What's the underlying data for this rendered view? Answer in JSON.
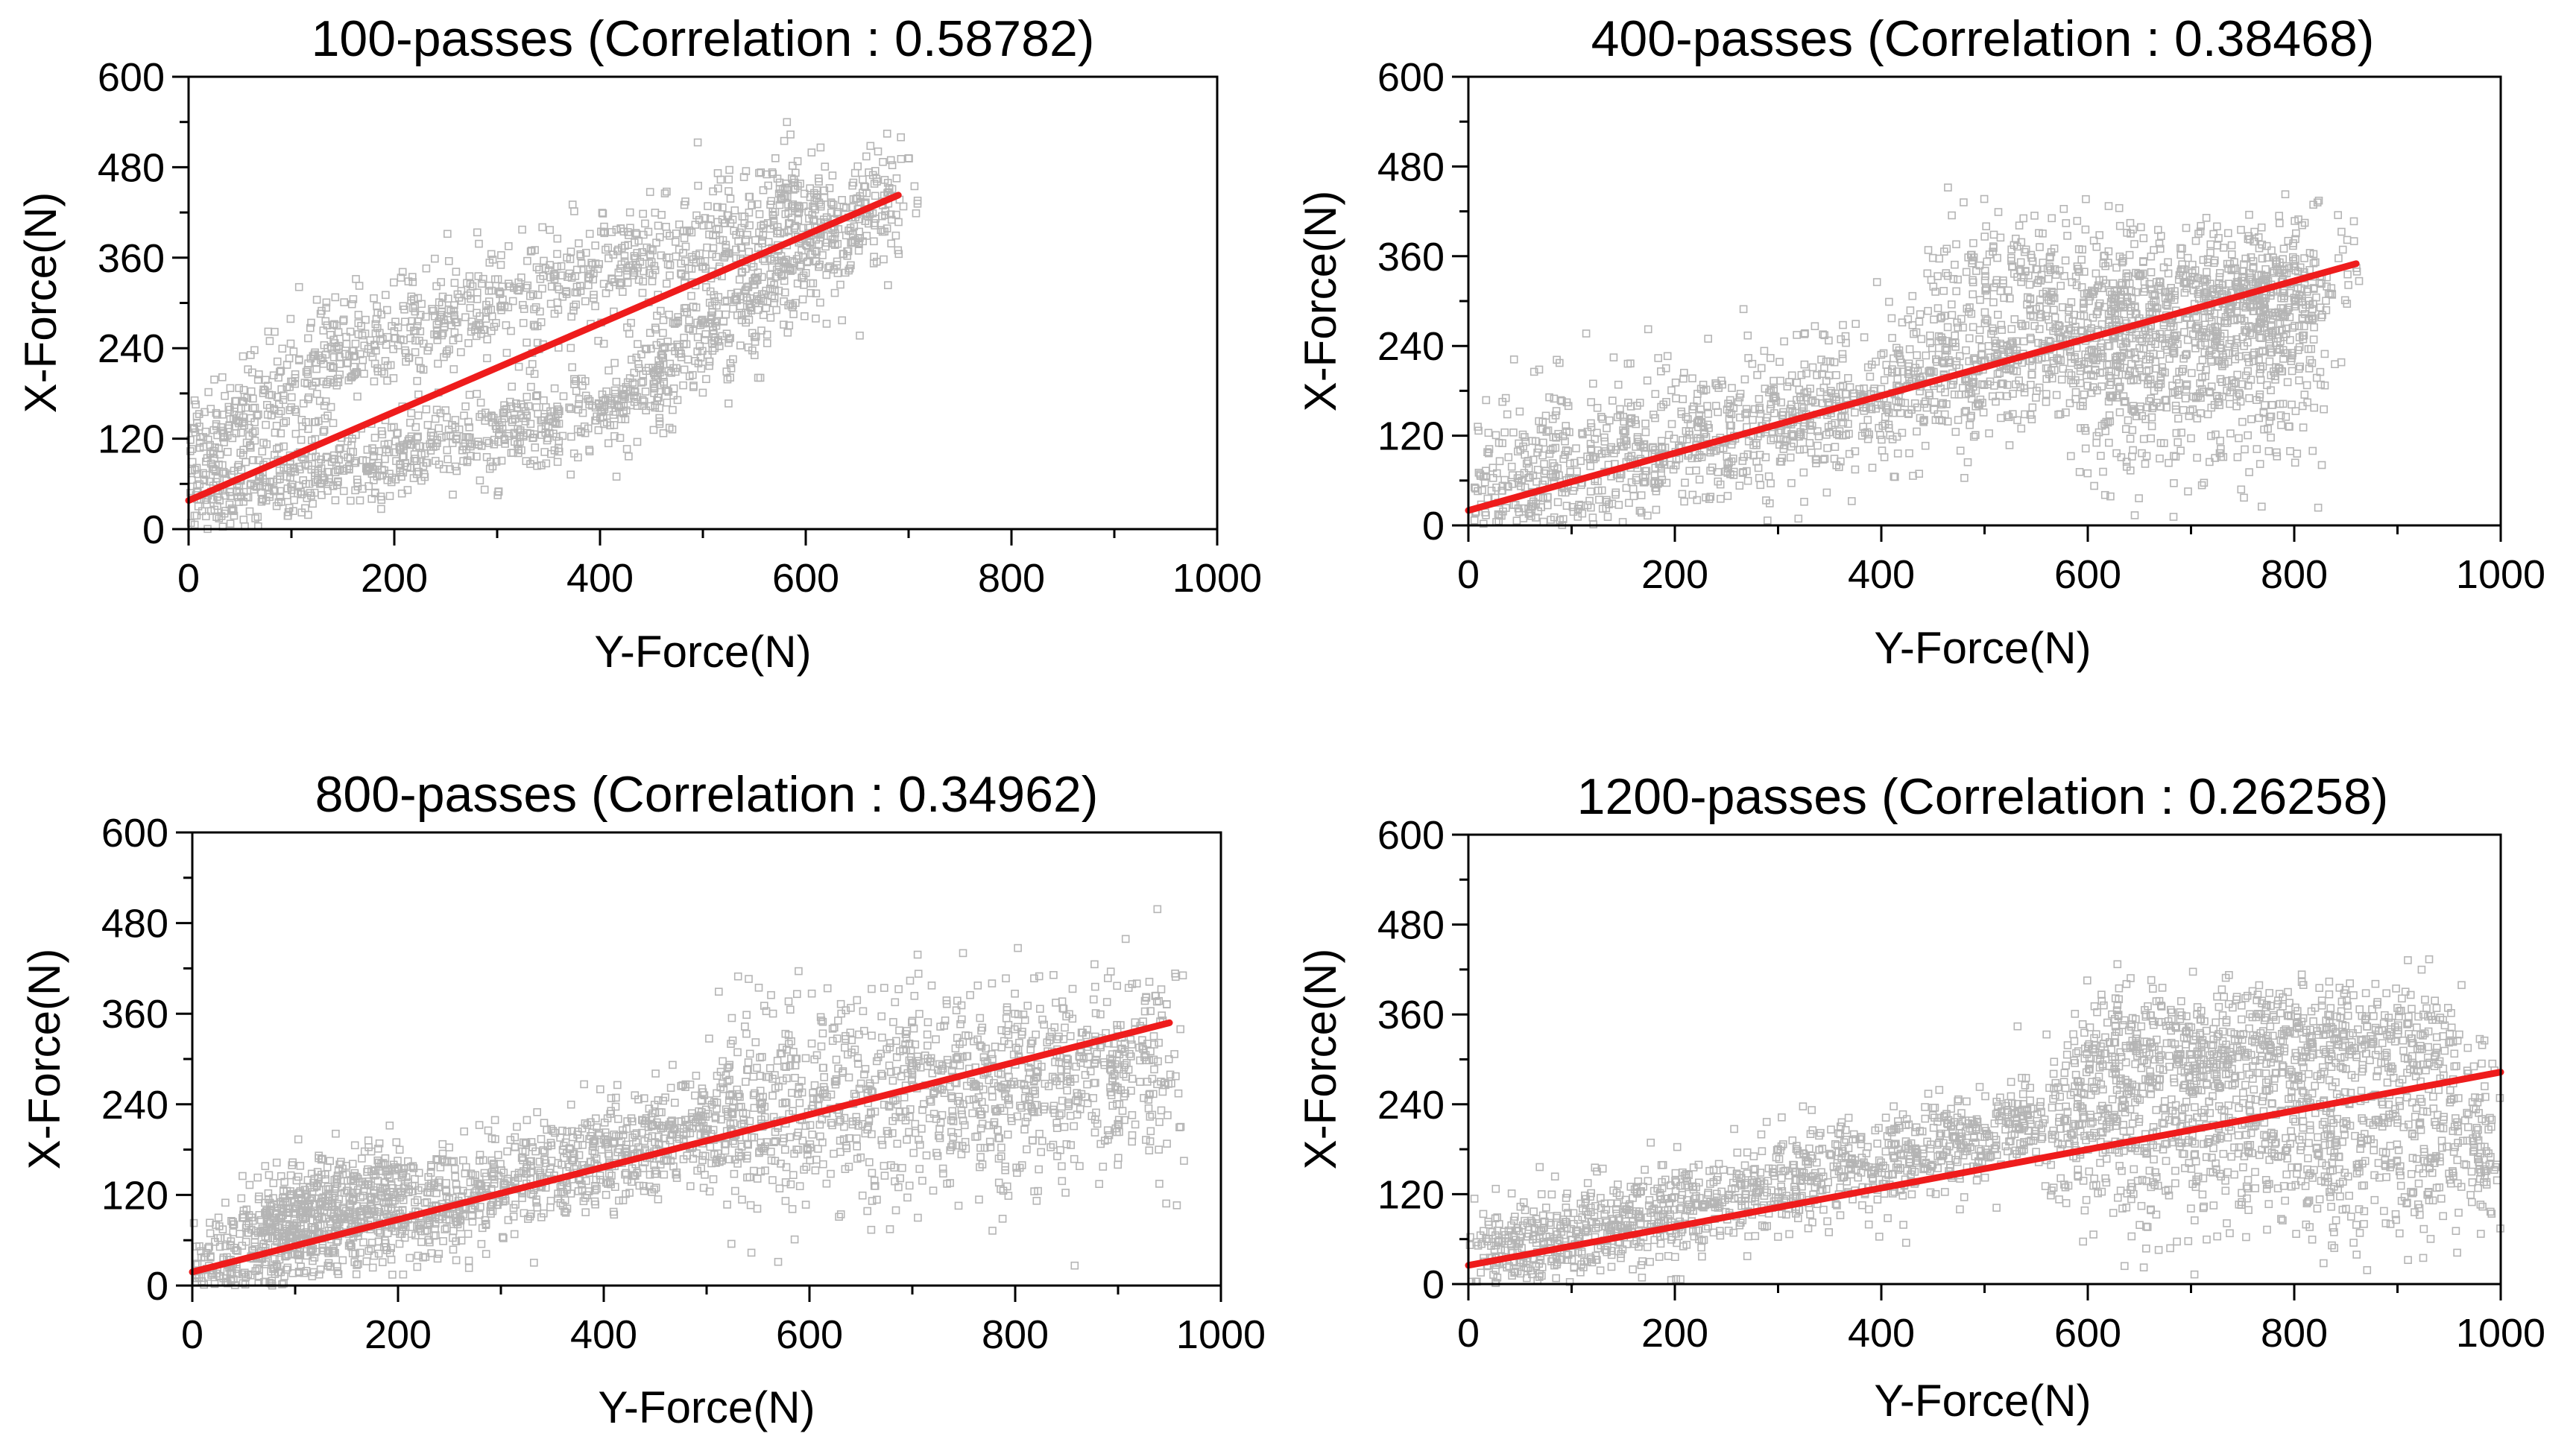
{
  "colors": {
    "scatter_points": "#b5b5b5",
    "fit_line": "#ee1c1c",
    "axes": "#000000"
  },
  "chart_data": [
    {
      "type": "scatter",
      "title": "100-passes (Correlation : 0.58782)",
      "correlation": 0.58782,
      "xlabel": "Y-Force(N)",
      "ylabel": "X-Force(N)",
      "xlim": [
        0,
        1000
      ],
      "ylim": [
        0,
        600
      ],
      "x_ticks": [
        "0",
        "200",
        "400",
        "600",
        "800",
        "1000"
      ],
      "y_ticks": [
        "0",
        "120",
        "240",
        "360",
        "480",
        "600"
      ],
      "fit_line": {
        "x": [
          0,
          690
        ],
        "y": [
          38,
          443
        ]
      },
      "point_count": 2200,
      "point_clouds": [
        {
          "x": [
            0,
            150
          ],
          "y_center": [
            95,
            230
          ],
          "spread": 40,
          "share": 0.13
        },
        {
          "x": [
            150,
            620
          ],
          "y_center": [
            235,
            440
          ],
          "spread": 38,
          "share": 0.32
        },
        {
          "x": [
            0,
            420
          ],
          "y_center": [
            30,
            170
          ],
          "spread": 28,
          "share": 0.3
        },
        {
          "x": [
            420,
            690
          ],
          "y_center": [
            170,
            450
          ],
          "spread": 38,
          "share": 0.25
        }
      ]
    },
    {
      "type": "scatter",
      "title": "400-passes (Correlation : 0.38468)",
      "correlation": 0.38468,
      "xlabel": "Y-Force(N)",
      "ylabel": "X-Force(N)",
      "xlim": [
        0,
        1000
      ],
      "ylim": [
        0,
        600
      ],
      "x_ticks": [
        "0",
        "200",
        "400",
        "600",
        "800",
        "1000"
      ],
      "y_ticks": [
        "0",
        "120",
        "240",
        "360",
        "480",
        "600"
      ],
      "fit_line": {
        "x": [
          0,
          860
        ],
        "y": [
          20,
          350
        ]
      },
      "point_count": 2600,
      "point_clouds": [
        {
          "x": [
            0,
            850
          ],
          "y_center": [
            60,
            330
          ],
          "spread": 55,
          "share": 0.4
        },
        {
          "x": [
            0,
            820
          ],
          "y_center": [
            20,
            320
          ],
          "spread": 40,
          "share": 0.3
        },
        {
          "x": [
            450,
            820
          ],
          "y_center": [
            340,
            300
          ],
          "spread": 45,
          "share": 0.15
        },
        {
          "x": [
            600,
            820
          ],
          "y_center": [
            170,
            200
          ],
          "spread": 65,
          "share": 0.15
        }
      ]
    },
    {
      "type": "scatter",
      "title": "800-passes (Correlation : 0.34962)",
      "correlation": 0.34962,
      "xlabel": "Y-Force(N)",
      "ylabel": "X-Force(N)",
      "xlim": [
        0,
        1000
      ],
      "ylim": [
        0,
        600
      ],
      "x_ticks": [
        "0",
        "200",
        "400",
        "600",
        "800",
        "1000"
      ],
      "y_ticks": [
        "0",
        "120",
        "240",
        "360",
        "480",
        "600"
      ],
      "fit_line": {
        "x": [
          0,
          950
        ],
        "y": [
          18,
          348
        ]
      },
      "point_count": 2600,
      "point_clouds": [
        {
          "x": [
            0,
            520
          ],
          "y_center": [
            10,
            220
          ],
          "spread": 35,
          "share": 0.45
        },
        {
          "x": [
            520,
            950
          ],
          "y_center": [
            230,
            290
          ],
          "spread": 70,
          "share": 0.4
        },
        {
          "x": [
            60,
            200
          ],
          "y_center": [
            80,
            140
          ],
          "spread": 30,
          "share": 0.15
        }
      ]
    },
    {
      "type": "scatter",
      "title": "1200-passes (Correlation : 0.26258)",
      "correlation": 0.26258,
      "xlabel": "Y-Force(N)",
      "ylabel": "X-Force(N)",
      "xlim": [
        0,
        1000
      ],
      "ylim": [
        0,
        600
      ],
      "x_ticks": [
        "0",
        "200",
        "400",
        "600",
        "800",
        "1000"
      ],
      "y_ticks": [
        "0",
        "120",
        "240",
        "360",
        "480",
        "600"
      ],
      "fit_line": {
        "x": [
          0,
          1000
        ],
        "y": [
          25,
          283
        ]
      },
      "point_count": 2800,
      "point_clouds": [
        {
          "x": [
            0,
            560
          ],
          "y_center": [
            30,
            220
          ],
          "spread": 32,
          "share": 0.42
        },
        {
          "x": [
            560,
            1000
          ],
          "y_center": [
            220,
            190
          ],
          "spread": 70,
          "share": 0.38
        },
        {
          "x": [
            600,
            950
          ],
          "y_center": [
            320,
            330
          ],
          "spread": 35,
          "share": 0.2
        }
      ]
    }
  ]
}
